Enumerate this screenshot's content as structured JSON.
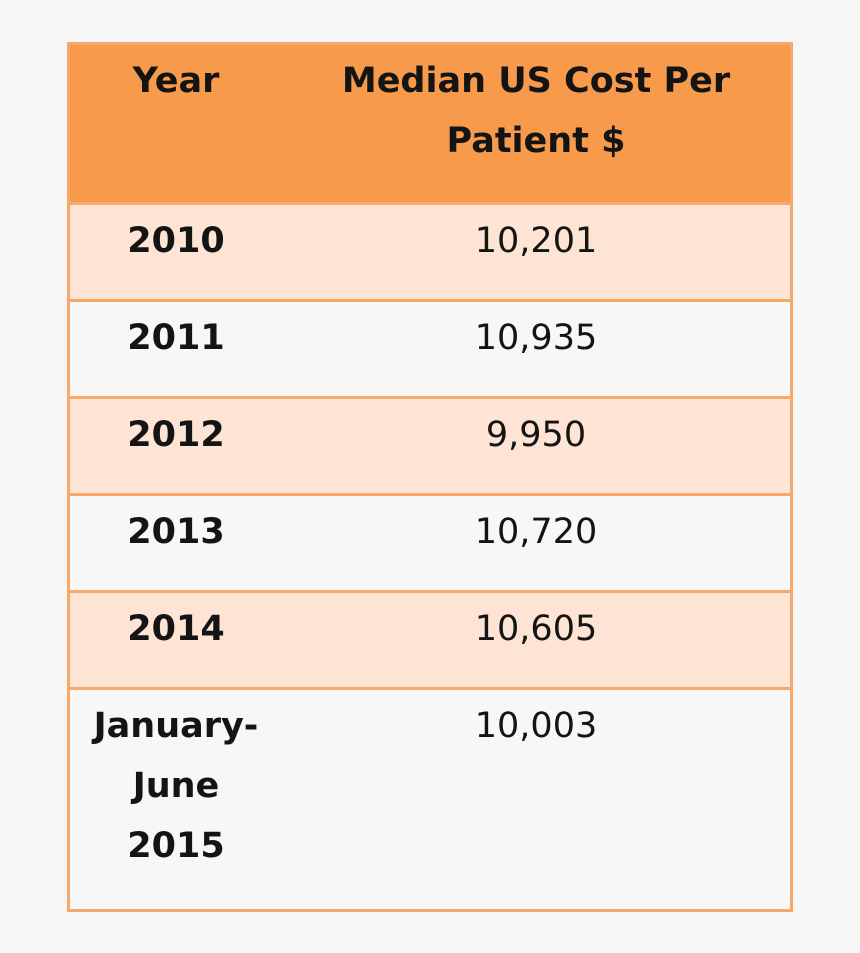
{
  "table": {
    "headers": {
      "year": "Year",
      "cost": "Median US Cost Per Patient $"
    },
    "rows": [
      {
        "year": "2010",
        "cost": "10,201"
      },
      {
        "year": "2011",
        "cost": "10,935"
      },
      {
        "year": "2012",
        "cost": "9,950"
      },
      {
        "year": "2013",
        "cost": "10,720"
      },
      {
        "year": "2014",
        "cost": "10,605"
      },
      {
        "year": "January-June 2015",
        "cost": "10,003"
      }
    ]
  },
  "colors": {
    "header_bg": "#f79a4c",
    "odd_row_bg": "#fde4d4",
    "even_row_bg": "#f7f7f7",
    "border": "#f6a96a",
    "page_bg": "#f6f6f6"
  }
}
